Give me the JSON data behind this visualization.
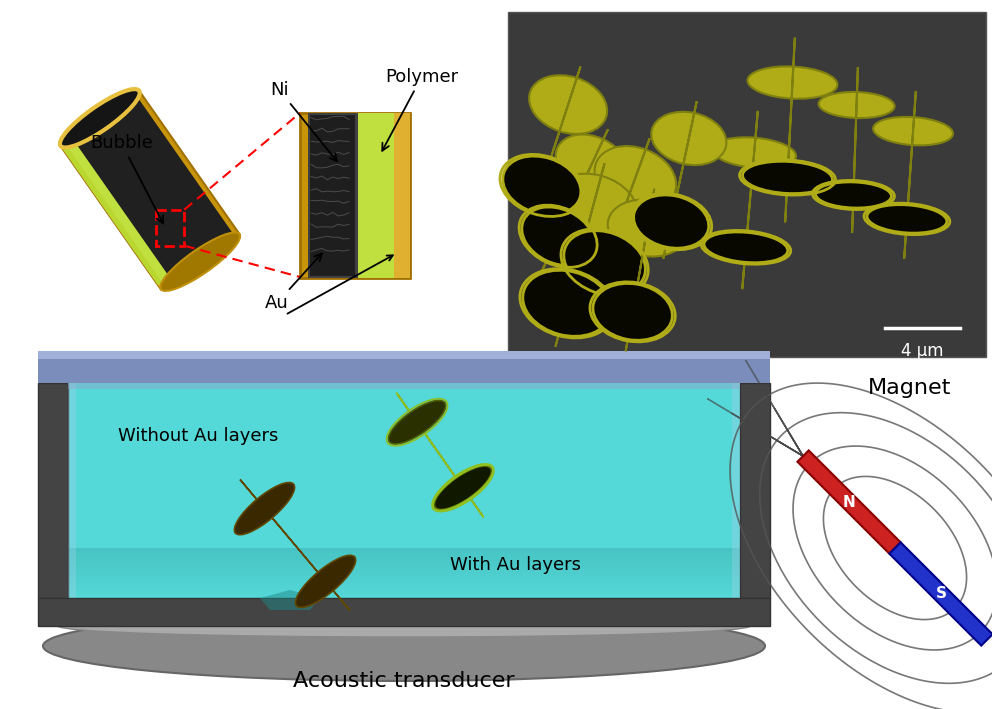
{
  "background_color": "#ffffff",
  "sem_scale_text": "4 μm",
  "sem_bg_color": "#3a3a3a",
  "tube_color_hex": "#b8b020",
  "bottom_labels": {
    "without_au": "Without Au layers",
    "with_au": "With Au layers",
    "transducer": "Acoustic transducer",
    "magnet": "Magnet"
  },
  "magnet_N_color": "#cc2222",
  "magnet_S_color": "#2233cc",
  "fluid_color": "#55d8d8",
  "top_plate_color": "#7a8dbb",
  "side_plate_color": "#444444",
  "transducer_color": "#999999",
  "rocket1_color": "#7a8800",
  "rocket1_inner": "#90b010",
  "rocket2_color": "#8a6800",
  "rocket2_dark": "#3a2800"
}
